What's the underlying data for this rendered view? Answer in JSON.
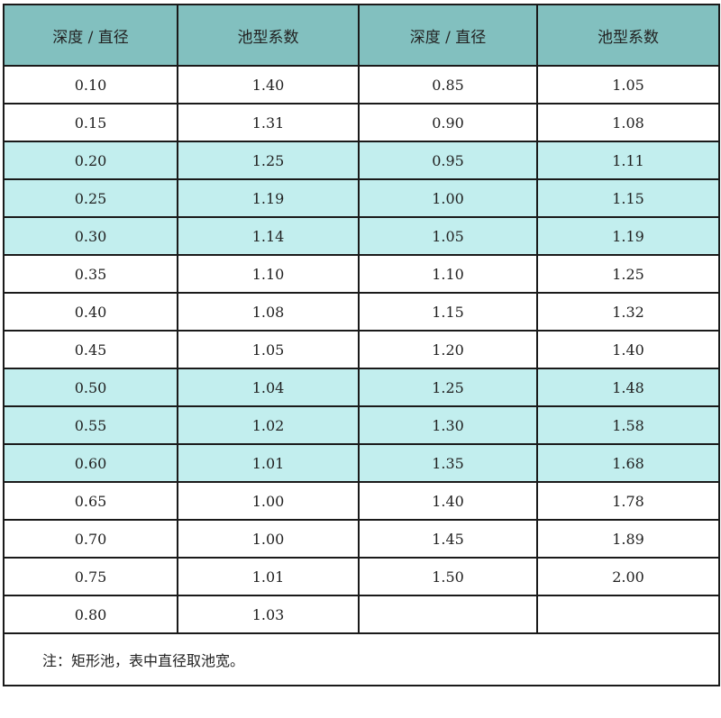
{
  "header_color": "#82c0bf",
  "highlight_color": "#c2eeee",
  "headers": [
    "深度 / 直径",
    "池型系数",
    "深度 / 直径",
    "池型系数"
  ],
  "rows": [
    {
      "cells": [
        "0.10",
        "1.40",
        "0.85",
        "1.05"
      ],
      "highlight": false
    },
    {
      "cells": [
        "0.15",
        "1.31",
        "0.90",
        "1.08"
      ],
      "highlight": false
    },
    {
      "cells": [
        "0.20",
        "1.25",
        "0.95",
        "1.11"
      ],
      "highlight": true
    },
    {
      "cells": [
        "0.25",
        "1.19",
        "1.00",
        "1.15"
      ],
      "highlight": true
    },
    {
      "cells": [
        "0.30",
        "1.14",
        "1.05",
        "1.19"
      ],
      "highlight": true
    },
    {
      "cells": [
        "0.35",
        "1.10",
        "1.10",
        "1.25"
      ],
      "highlight": false
    },
    {
      "cells": [
        "0.40",
        "1.08",
        "1.15",
        "1.32"
      ],
      "highlight": false
    },
    {
      "cells": [
        "0.45",
        "1.05",
        "1.20",
        "1.40"
      ],
      "highlight": false
    },
    {
      "cells": [
        "0.50",
        "1.04",
        "1.25",
        "1.48"
      ],
      "highlight": true
    },
    {
      "cells": [
        "0.55",
        "1.02",
        "1.30",
        "1.58"
      ],
      "highlight": true
    },
    {
      "cells": [
        "0.60",
        "1.01",
        "1.35",
        "1.68"
      ],
      "highlight": true
    },
    {
      "cells": [
        "0.65",
        "1.00",
        "1.40",
        "1.78"
      ],
      "highlight": false
    },
    {
      "cells": [
        "0.70",
        "1.00",
        "1.45",
        "1.89"
      ],
      "highlight": false
    },
    {
      "cells": [
        "0.75",
        "1.01",
        "1.50",
        "2.00"
      ],
      "highlight": false
    },
    {
      "cells": [
        "0.80",
        "1.03",
        "",
        ""
      ],
      "highlight": false
    }
  ],
  "note": "注：矩形池，表中直径取池宽。"
}
